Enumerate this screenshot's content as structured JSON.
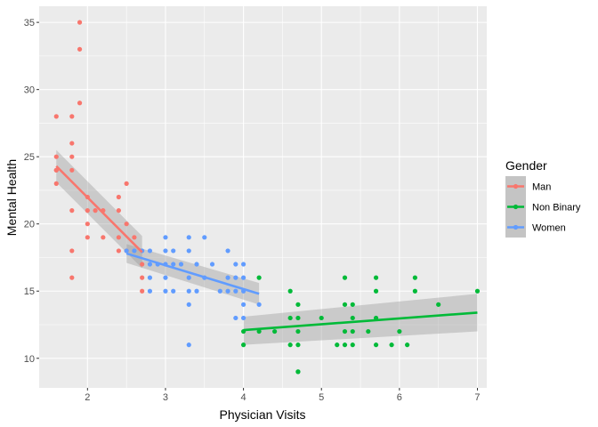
{
  "chart_data": {
    "type": "scatter",
    "xlabel": "Physician Visits",
    "ylabel": "Mental Health",
    "xlim": [
      1.38,
      7.12
    ],
    "ylim": [
      7.8,
      36.2
    ],
    "x_ticks": [
      2,
      3,
      4,
      5,
      6,
      7
    ],
    "y_ticks": [
      10,
      15,
      20,
      25,
      30,
      35
    ],
    "grid": true,
    "legend": {
      "title": "Gender",
      "placement": "right"
    },
    "series": [
      {
        "name": "Man",
        "color": "#F8766D",
        "points": [
          [
            1.6,
            28
          ],
          [
            1.6,
            25
          ],
          [
            1.6,
            24
          ],
          [
            1.6,
            24
          ],
          [
            1.6,
            23
          ],
          [
            1.8,
            28
          ],
          [
            1.8,
            26
          ],
          [
            1.8,
            25
          ],
          [
            1.8,
            24
          ],
          [
            1.8,
            21
          ],
          [
            1.8,
            18
          ],
          [
            1.8,
            16
          ],
          [
            1.9,
            35
          ],
          [
            1.9,
            33
          ],
          [
            1.9,
            29
          ],
          [
            2.0,
            22
          ],
          [
            2.0,
            21
          ],
          [
            2.0,
            20
          ],
          [
            2.0,
            19
          ],
          [
            2.1,
            21
          ],
          [
            2.2,
            21
          ],
          [
            2.2,
            19
          ],
          [
            2.4,
            22
          ],
          [
            2.4,
            21
          ],
          [
            2.4,
            19
          ],
          [
            2.4,
            18
          ],
          [
            2.5,
            23
          ],
          [
            2.5,
            20
          ],
          [
            2.5,
            18
          ],
          [
            2.6,
            19
          ],
          [
            2.7,
            17
          ],
          [
            2.7,
            16
          ],
          [
            2.7,
            15
          ]
        ],
        "fit": {
          "x": [
            1.6,
            2.7
          ],
          "y": [
            24.3,
            17.9
          ]
        },
        "ci_upper": [
          25.5,
          19.1
        ],
        "ci_lower": [
          23.1,
          16.7
        ]
      },
      {
        "name": "Non Binary",
        "color": "#00BA38",
        "points": [
          [
            4.0,
            12
          ],
          [
            4.0,
            11
          ],
          [
            4.2,
            16
          ],
          [
            4.2,
            12
          ],
          [
            4.4,
            12
          ],
          [
            4.6,
            15
          ],
          [
            4.6,
            13
          ],
          [
            4.6,
            11
          ],
          [
            4.7,
            14
          ],
          [
            4.7,
            13
          ],
          [
            4.7,
            12
          ],
          [
            4.7,
            11
          ],
          [
            4.7,
            9
          ],
          [
            4.7,
            9
          ],
          [
            5.0,
            13
          ],
          [
            5.2,
            11
          ],
          [
            5.3,
            16
          ],
          [
            5.3,
            14
          ],
          [
            5.3,
            12
          ],
          [
            5.3,
            11
          ],
          [
            5.4,
            14
          ],
          [
            5.4,
            13
          ],
          [
            5.4,
            12
          ],
          [
            5.4,
            11
          ],
          [
            5.6,
            12
          ],
          [
            5.7,
            16
          ],
          [
            5.7,
            15
          ],
          [
            5.7,
            13
          ],
          [
            5.7,
            11
          ],
          [
            5.9,
            11
          ],
          [
            6.0,
            12
          ],
          [
            6.1,
            11
          ],
          [
            6.2,
            16
          ],
          [
            6.2,
            15
          ],
          [
            6.5,
            14
          ],
          [
            7.0,
            15
          ]
        ],
        "fit": {
          "x": [
            4.0,
            7.0
          ],
          "y": [
            12.1,
            13.4
          ]
        },
        "ci_upper": [
          13.1,
          14.8
        ],
        "ci_lower": [
          11.0,
          12.0
        ]
      },
      {
        "name": "Women",
        "color": "#619CFF",
        "points": [
          [
            2.5,
            18
          ],
          [
            2.6,
            18
          ],
          [
            2.7,
            18
          ],
          [
            2.8,
            18
          ],
          [
            2.8,
            17
          ],
          [
            2.8,
            16
          ],
          [
            2.8,
            15
          ],
          [
            2.9,
            17
          ],
          [
            3.0,
            19
          ],
          [
            3.0,
            18
          ],
          [
            3.0,
            17
          ],
          [
            3.0,
            16
          ],
          [
            3.0,
            15
          ],
          [
            3.1,
            18
          ],
          [
            3.1,
            17
          ],
          [
            3.1,
            15
          ],
          [
            3.2,
            17
          ],
          [
            3.3,
            19
          ],
          [
            3.3,
            18
          ],
          [
            3.3,
            16
          ],
          [
            3.3,
            15
          ],
          [
            3.3,
            14
          ],
          [
            3.3,
            11
          ],
          [
            3.4,
            17
          ],
          [
            3.4,
            15
          ],
          [
            3.5,
            19
          ],
          [
            3.5,
            16
          ],
          [
            3.6,
            17
          ],
          [
            3.7,
            15
          ],
          [
            3.8,
            18
          ],
          [
            3.8,
            16
          ],
          [
            3.8,
            15
          ],
          [
            3.9,
            17
          ],
          [
            3.9,
            16
          ],
          [
            3.9,
            15
          ],
          [
            3.9,
            13
          ],
          [
            4.0,
            17
          ],
          [
            4.0,
            16
          ],
          [
            4.0,
            15
          ],
          [
            4.0,
            14
          ],
          [
            4.0,
            13
          ],
          [
            4.2,
            14
          ]
        ],
        "fit": {
          "x": [
            2.5,
            4.2
          ],
          "y": [
            17.8,
            14.8
          ]
        },
        "ci_upper": [
          18.5,
          15.6
        ],
        "ci_lower": [
          17.1,
          14.0
        ]
      }
    ]
  }
}
